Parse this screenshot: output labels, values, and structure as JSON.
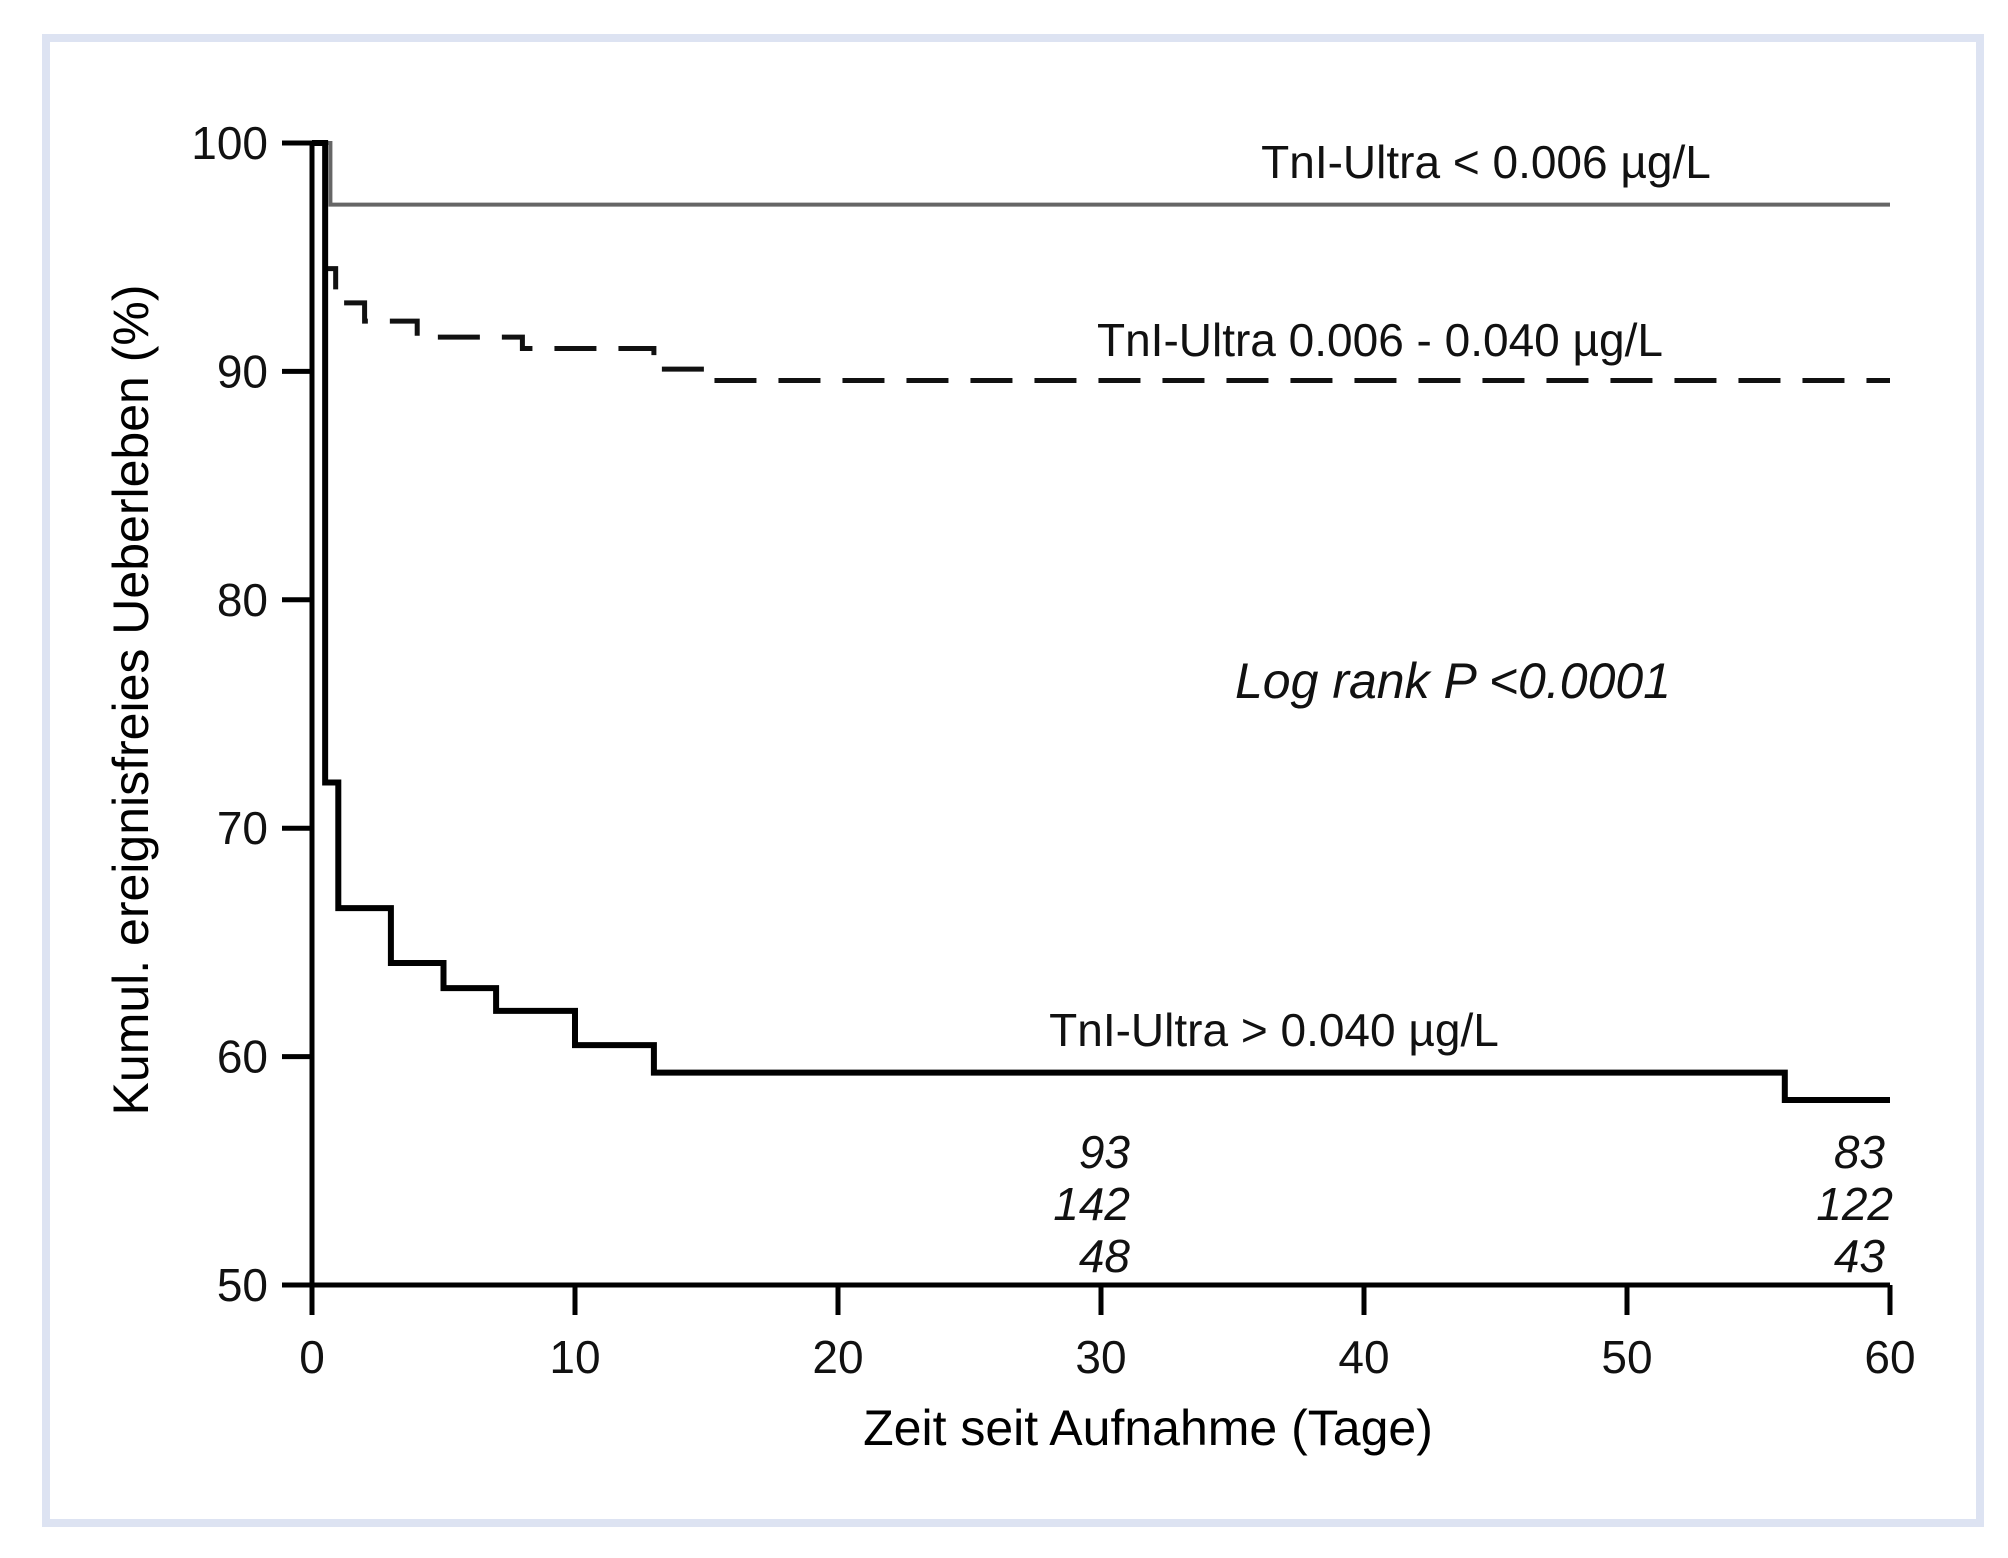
{
  "chart_data": {
    "type": "line",
    "title": "",
    "xlabel": "Zeit seit Aufnahme (Tage)",
    "ylabel": "Kumul. ereignisfreies Ueberleben (%)",
    "xlim": [
      0,
      60
    ],
    "ylim": [
      50,
      100
    ],
    "xticks": [
      0,
      10,
      20,
      30,
      40,
      50,
      60
    ],
    "yticks": [
      50,
      60,
      70,
      80,
      90,
      100
    ],
    "grid": false,
    "series": [
      {
        "name": "TnI-Ultra < 0.006 µg/L",
        "style": "solid-thin",
        "color": "#666666",
        "steps": [
          [
            0,
            100
          ],
          [
            0.7,
            97.3
          ],
          [
            60,
            97.3
          ]
        ]
      },
      {
        "name": "TnI-Ultra 0.006 - 0.040 µg/L",
        "style": "dashed",
        "color": "#111111",
        "steps": [
          [
            0,
            100
          ],
          [
            0.5,
            94.5
          ],
          [
            0.9,
            93.0
          ],
          [
            2,
            92.2
          ],
          [
            4,
            91.5
          ],
          [
            8,
            91.0
          ],
          [
            13,
            90.1
          ],
          [
            15,
            89.6
          ],
          [
            60,
            89.6
          ]
        ]
      },
      {
        "name": "TnI-Ultra > 0.040 µg/L",
        "style": "solid-thick",
        "color": "#000000",
        "steps": [
          [
            0,
            100
          ],
          [
            0.5,
            72
          ],
          [
            1,
            66.5
          ],
          [
            3,
            64.1
          ],
          [
            5,
            63
          ],
          [
            7,
            62
          ],
          [
            10,
            60.5
          ],
          [
            13,
            59.3
          ],
          [
            56,
            58.1
          ],
          [
            60,
            58.1
          ]
        ]
      }
    ],
    "annotation": "Log rank P <0.0001",
    "risk_table": {
      "times": [
        30,
        60
      ],
      "rows": [
        [
          "93",
          "83"
        ],
        [
          "142",
          "122"
        ],
        [
          "48",
          "43"
        ]
      ]
    },
    "legend": "inline labels"
  }
}
